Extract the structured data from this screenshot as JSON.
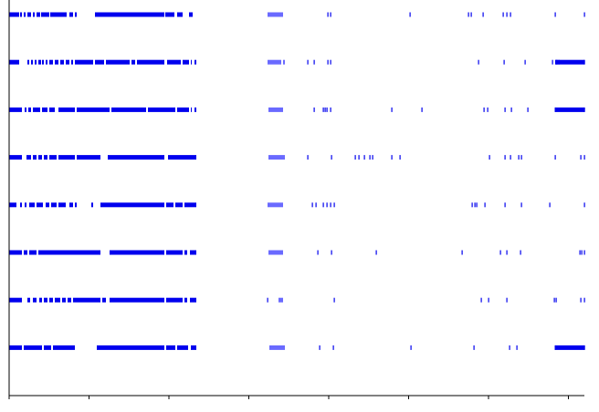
{
  "colors": {
    "background": "#ffffff",
    "axis": "#000000",
    "mark_dark": "#0000ee",
    "mark_light": "#6a6aff"
  },
  "chart_data": {
    "type": "event-raster",
    "title": "",
    "xlabel": "",
    "ylabel": "",
    "x_range": [
      0,
      630
    ],
    "x_ticks": [
      0,
      87.5,
      175,
      262.5,
      350,
      437.5,
      525,
      612.5
    ],
    "rows": [
      {
        "spans": [
          [
            0,
            11
          ],
          [
            12,
            14
          ],
          [
            16,
            18
          ],
          [
            20,
            24
          ],
          [
            26,
            28
          ],
          [
            30,
            34
          ],
          [
            35,
            44
          ],
          [
            45,
            63
          ],
          [
            66,
            70
          ],
          [
            72,
            74
          ],
          [
            94,
            170
          ],
          [
            171,
            181
          ],
          [
            184,
            190
          ],
          [
            197,
            201
          ],
          [
            283,
            300
          ]
        ],
        "ticks": [
          349,
          352,
          439,
          503,
          506,
          519,
          541,
          545,
          549,
          598,
          630
        ]
      },
      {
        "spans": [
          [
            0,
            11
          ],
          [
            20,
            22
          ],
          [
            24,
            26
          ],
          [
            28,
            30
          ],
          [
            32,
            35
          ],
          [
            36,
            38
          ],
          [
            40,
            42
          ],
          [
            44,
            48
          ],
          [
            50,
            54
          ],
          [
            56,
            60
          ],
          [
            62,
            66
          ],
          [
            68,
            70
          ],
          [
            72,
            92
          ],
          [
            94,
            104
          ],
          [
            106,
            132
          ],
          [
            134,
            138
          ],
          [
            140,
            170
          ],
          [
            173,
            188
          ],
          [
            190,
            197
          ],
          [
            199,
            200
          ],
          [
            203,
            205
          ],
          [
            283,
            298
          ],
          [
            300,
            302
          ]
        ],
        "ticks": [
          327,
          334,
          349,
          352,
          514,
          542,
          565,
          595,
          599,
          600,
          602,
          630
        ],
        "spans_right": [
          [
            598,
            630
          ]
        ]
      },
      {
        "spans": [
          [
            0,
            14
          ],
          [
            17,
            19
          ],
          [
            21,
            24
          ],
          [
            26,
            34
          ],
          [
            36,
            42
          ],
          [
            44,
            50
          ],
          [
            54,
            72
          ],
          [
            74,
            110
          ],
          [
            112,
            150
          ],
          [
            152,
            182
          ],
          [
            184,
            197
          ],
          [
            199,
            200
          ],
          [
            203,
            205
          ],
          [
            284,
            300
          ]
        ],
        "ticks": [
          334,
          344,
          346,
          348,
          352,
          419,
          452,
          520,
          524,
          543,
          550,
          568,
          598,
          630
        ],
        "spans_right": [
          [
            598,
            630
          ]
        ]
      },
      {
        "spans": [
          [
            0,
            14
          ],
          [
            19,
            24
          ],
          [
            26,
            30
          ],
          [
            32,
            36
          ],
          [
            38,
            42
          ],
          [
            44,
            52
          ],
          [
            54,
            72
          ],
          [
            74,
            100
          ],
          [
            108,
            170
          ],
          [
            174,
            205
          ],
          [
            284,
            302
          ]
        ],
        "ticks": [
          327,
          353,
          379,
          383,
          389,
          395,
          398,
          419,
          428,
          526,
          543,
          549,
          558,
          561,
          598,
          626,
          630
        ]
      },
      {
        "spans": [
          [
            0,
            8
          ],
          [
            12,
            14
          ],
          [
            17,
            19
          ],
          [
            22,
            28
          ],
          [
            30,
            37
          ],
          [
            40,
            44
          ],
          [
            46,
            52
          ],
          [
            54,
            62
          ],
          [
            66,
            70
          ],
          [
            72,
            74
          ],
          [
            90,
            92
          ],
          [
            100,
            170
          ],
          [
            172,
            180
          ],
          [
            182,
            190
          ],
          [
            192,
            205
          ],
          [
            283,
            300
          ]
        ],
        "ticks": [
          332,
          336,
          344,
          348,
          352,
          356,
          507,
          510,
          512,
          521,
          543,
          561,
          592,
          630
        ]
      },
      {
        "spans": [
          [
            0,
            14
          ],
          [
            16,
            20
          ],
          [
            22,
            30
          ],
          [
            32,
            100
          ],
          [
            110,
            170
          ],
          [
            172,
            190
          ],
          [
            192,
            195
          ],
          [
            198,
            205
          ],
          [
            284,
            300
          ]
        ],
        "ticks": [
          338,
          353,
          402,
          496,
          538,
          545,
          560,
          625,
          627,
          630
        ]
      },
      {
        "spans": [
          [
            0,
            14
          ],
          [
            20,
            23
          ],
          [
            26,
            30
          ],
          [
            33,
            36
          ],
          [
            38,
            42
          ],
          [
            44,
            48
          ],
          [
            50,
            56
          ],
          [
            58,
            62
          ],
          [
            64,
            68
          ],
          [
            70,
            100
          ],
          [
            102,
            106
          ],
          [
            110,
            170
          ],
          [
            172,
            190
          ],
          [
            192,
            195
          ],
          [
            198,
            205
          ],
          [
            295,
            300
          ]
        ],
        "ticks": [
          283,
          356,
          517,
          525,
          545,
          597,
          599,
          626,
          630
        ]
      },
      {
        "spans": [
          [
            0,
            14
          ],
          [
            16,
            36
          ],
          [
            38,
            46
          ],
          [
            48,
            72
          ],
          [
            96,
            170
          ],
          [
            172,
            182
          ],
          [
            184,
            196
          ],
          [
            199,
            205
          ],
          [
            285,
            302
          ]
        ],
        "ticks": [
          340,
          355,
          440,
          509,
          548,
          556,
          598,
          630
        ],
        "spans_right": [
          [
            598,
            630
          ]
        ]
      }
    ]
  }
}
